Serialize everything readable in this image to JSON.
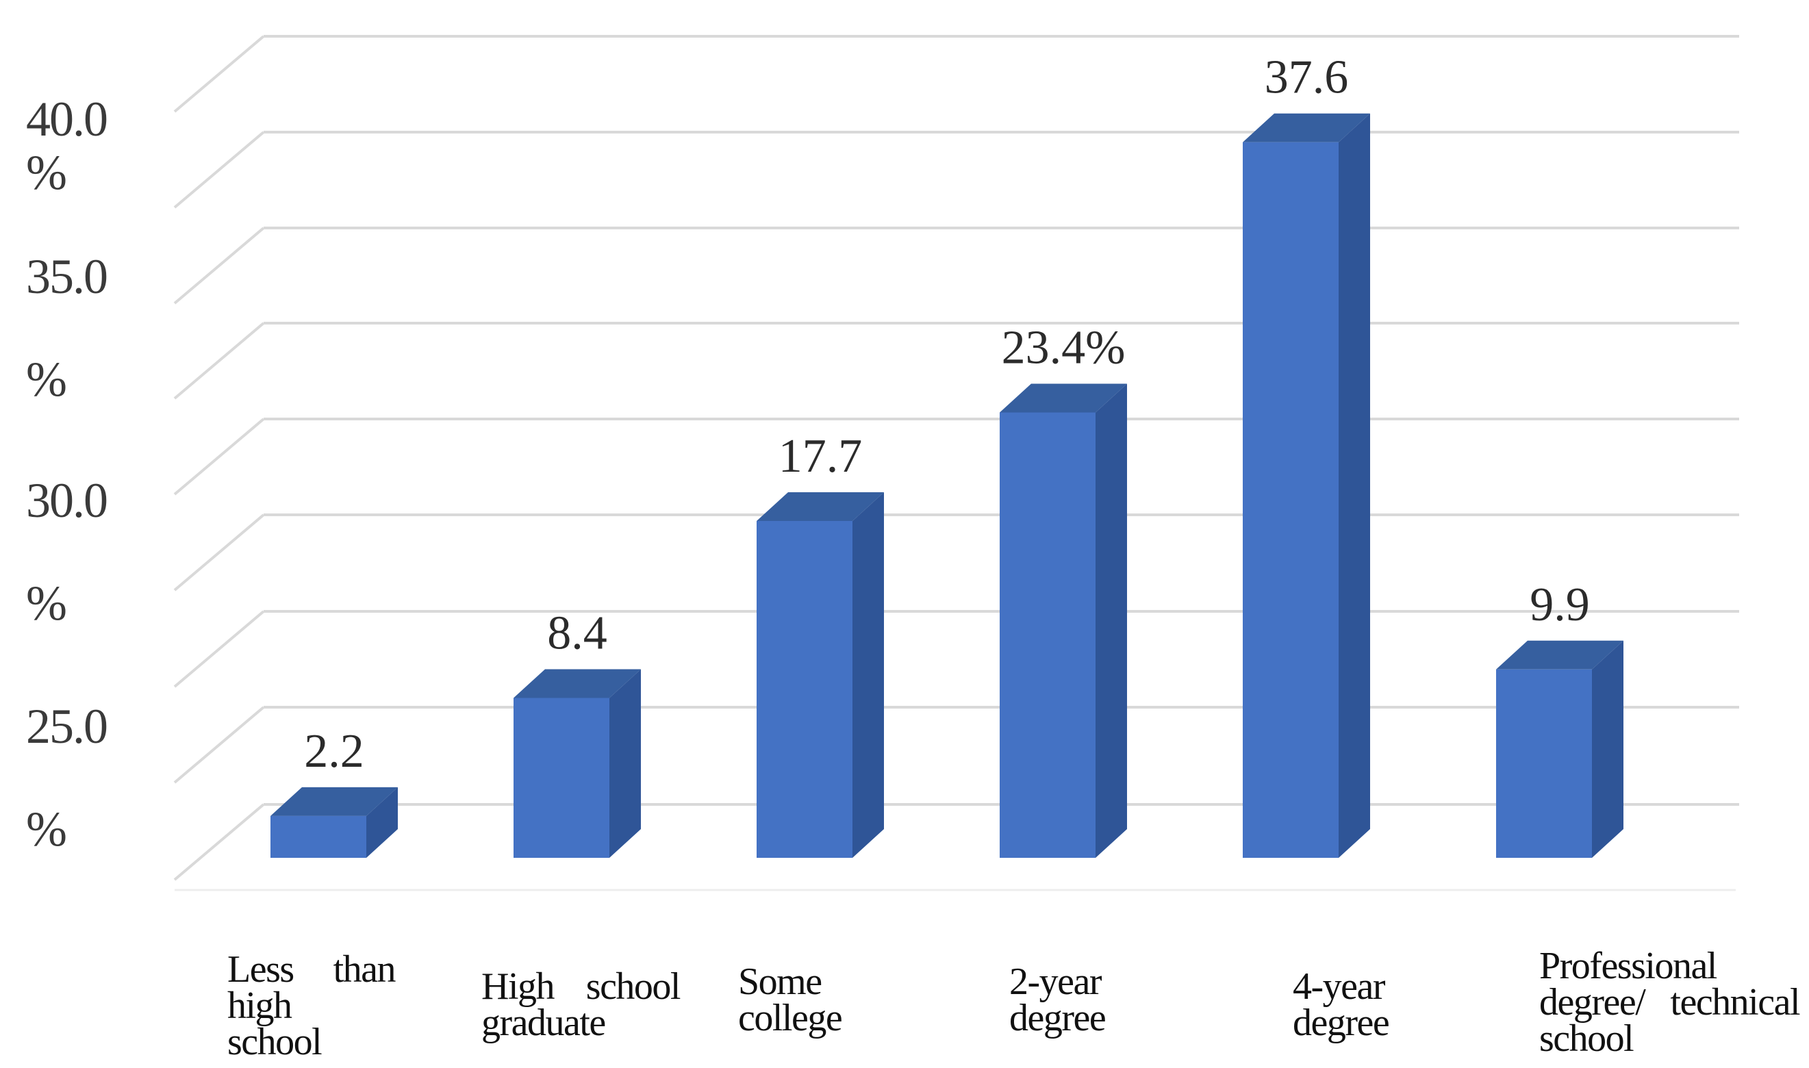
{
  "chart_data": {
    "type": "bar",
    "style": "3d-column",
    "categories": [
      "Less than high school",
      "High school graduate",
      "Some college",
      "2-year degree",
      "4-year degree",
      "Professional degree/ technical school"
    ],
    "values": [
      2.2,
      8.4,
      17.7,
      23.4,
      37.6,
      9.9
    ],
    "data_labels": [
      "2.2",
      "8.4",
      "17.7",
      "23.4%",
      "37.6",
      "9.9"
    ],
    "y_tick_labels": [
      {
        "value": "40.0",
        "unit": "%"
      },
      {
        "value": "35.0",
        "unit": "%"
      },
      {
        "value": "30.0",
        "unit": "%"
      },
      {
        "value": "25.0",
        "unit": "%"
      }
    ],
    "ylim": [
      0,
      40
    ],
    "grid": true,
    "legend": "none",
    "colors": {
      "bar_front": "#4472c4",
      "bar_side": "#2f5597",
      "bar_top": "#365f9f",
      "gridline": "#d9d9d9"
    }
  }
}
